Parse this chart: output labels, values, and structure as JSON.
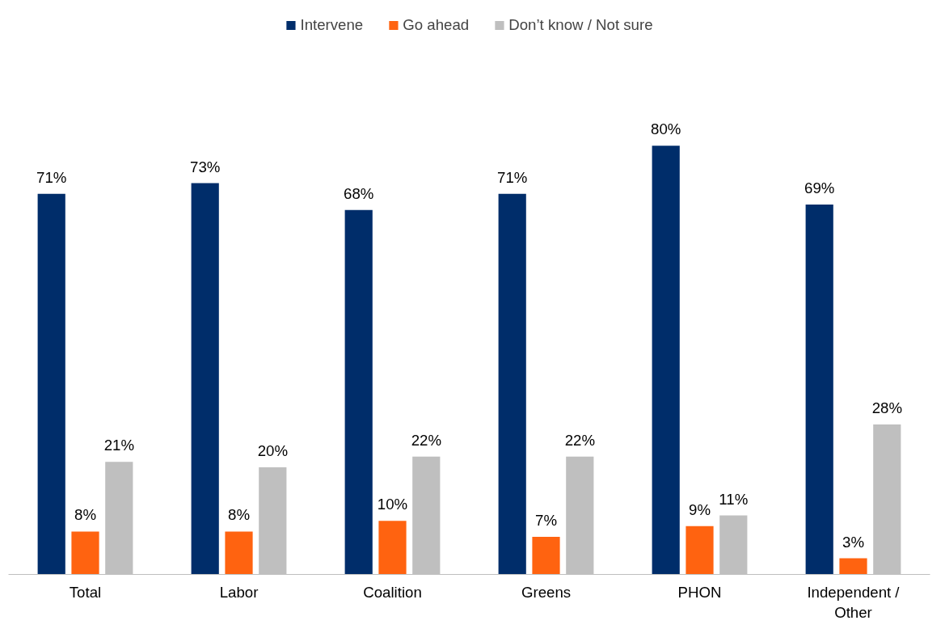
{
  "chart_data": {
    "type": "bar",
    "categories": [
      "Total",
      "Labor",
      "Coalition",
      "Greens",
      "PHON",
      "Independent / Other"
    ],
    "series": [
      {
        "name": "Intervene",
        "color": "#002d6a",
        "values": [
          71,
          73,
          68,
          71,
          80,
          69
        ],
        "value_labels": [
          "71%",
          "73%",
          "68%",
          "71%",
          "80%",
          "69%"
        ]
      },
      {
        "name": "Go ahead",
        "color": "#ff6310",
        "values": [
          8,
          8,
          10,
          7,
          9,
          3
        ],
        "value_labels": [
          "8%",
          "8%",
          "10%",
          "7%",
          "9%",
          "3%"
        ]
      },
      {
        "name": "Don’t know / Not sure",
        "color": "#bfbfbf",
        "values": [
          21,
          20,
          22,
          22,
          11,
          28
        ],
        "value_labels": [
          "21%",
          "20%",
          "22%",
          "22%",
          "11%",
          "28%"
        ]
      }
    ],
    "legend": "top",
    "grid": false
  }
}
